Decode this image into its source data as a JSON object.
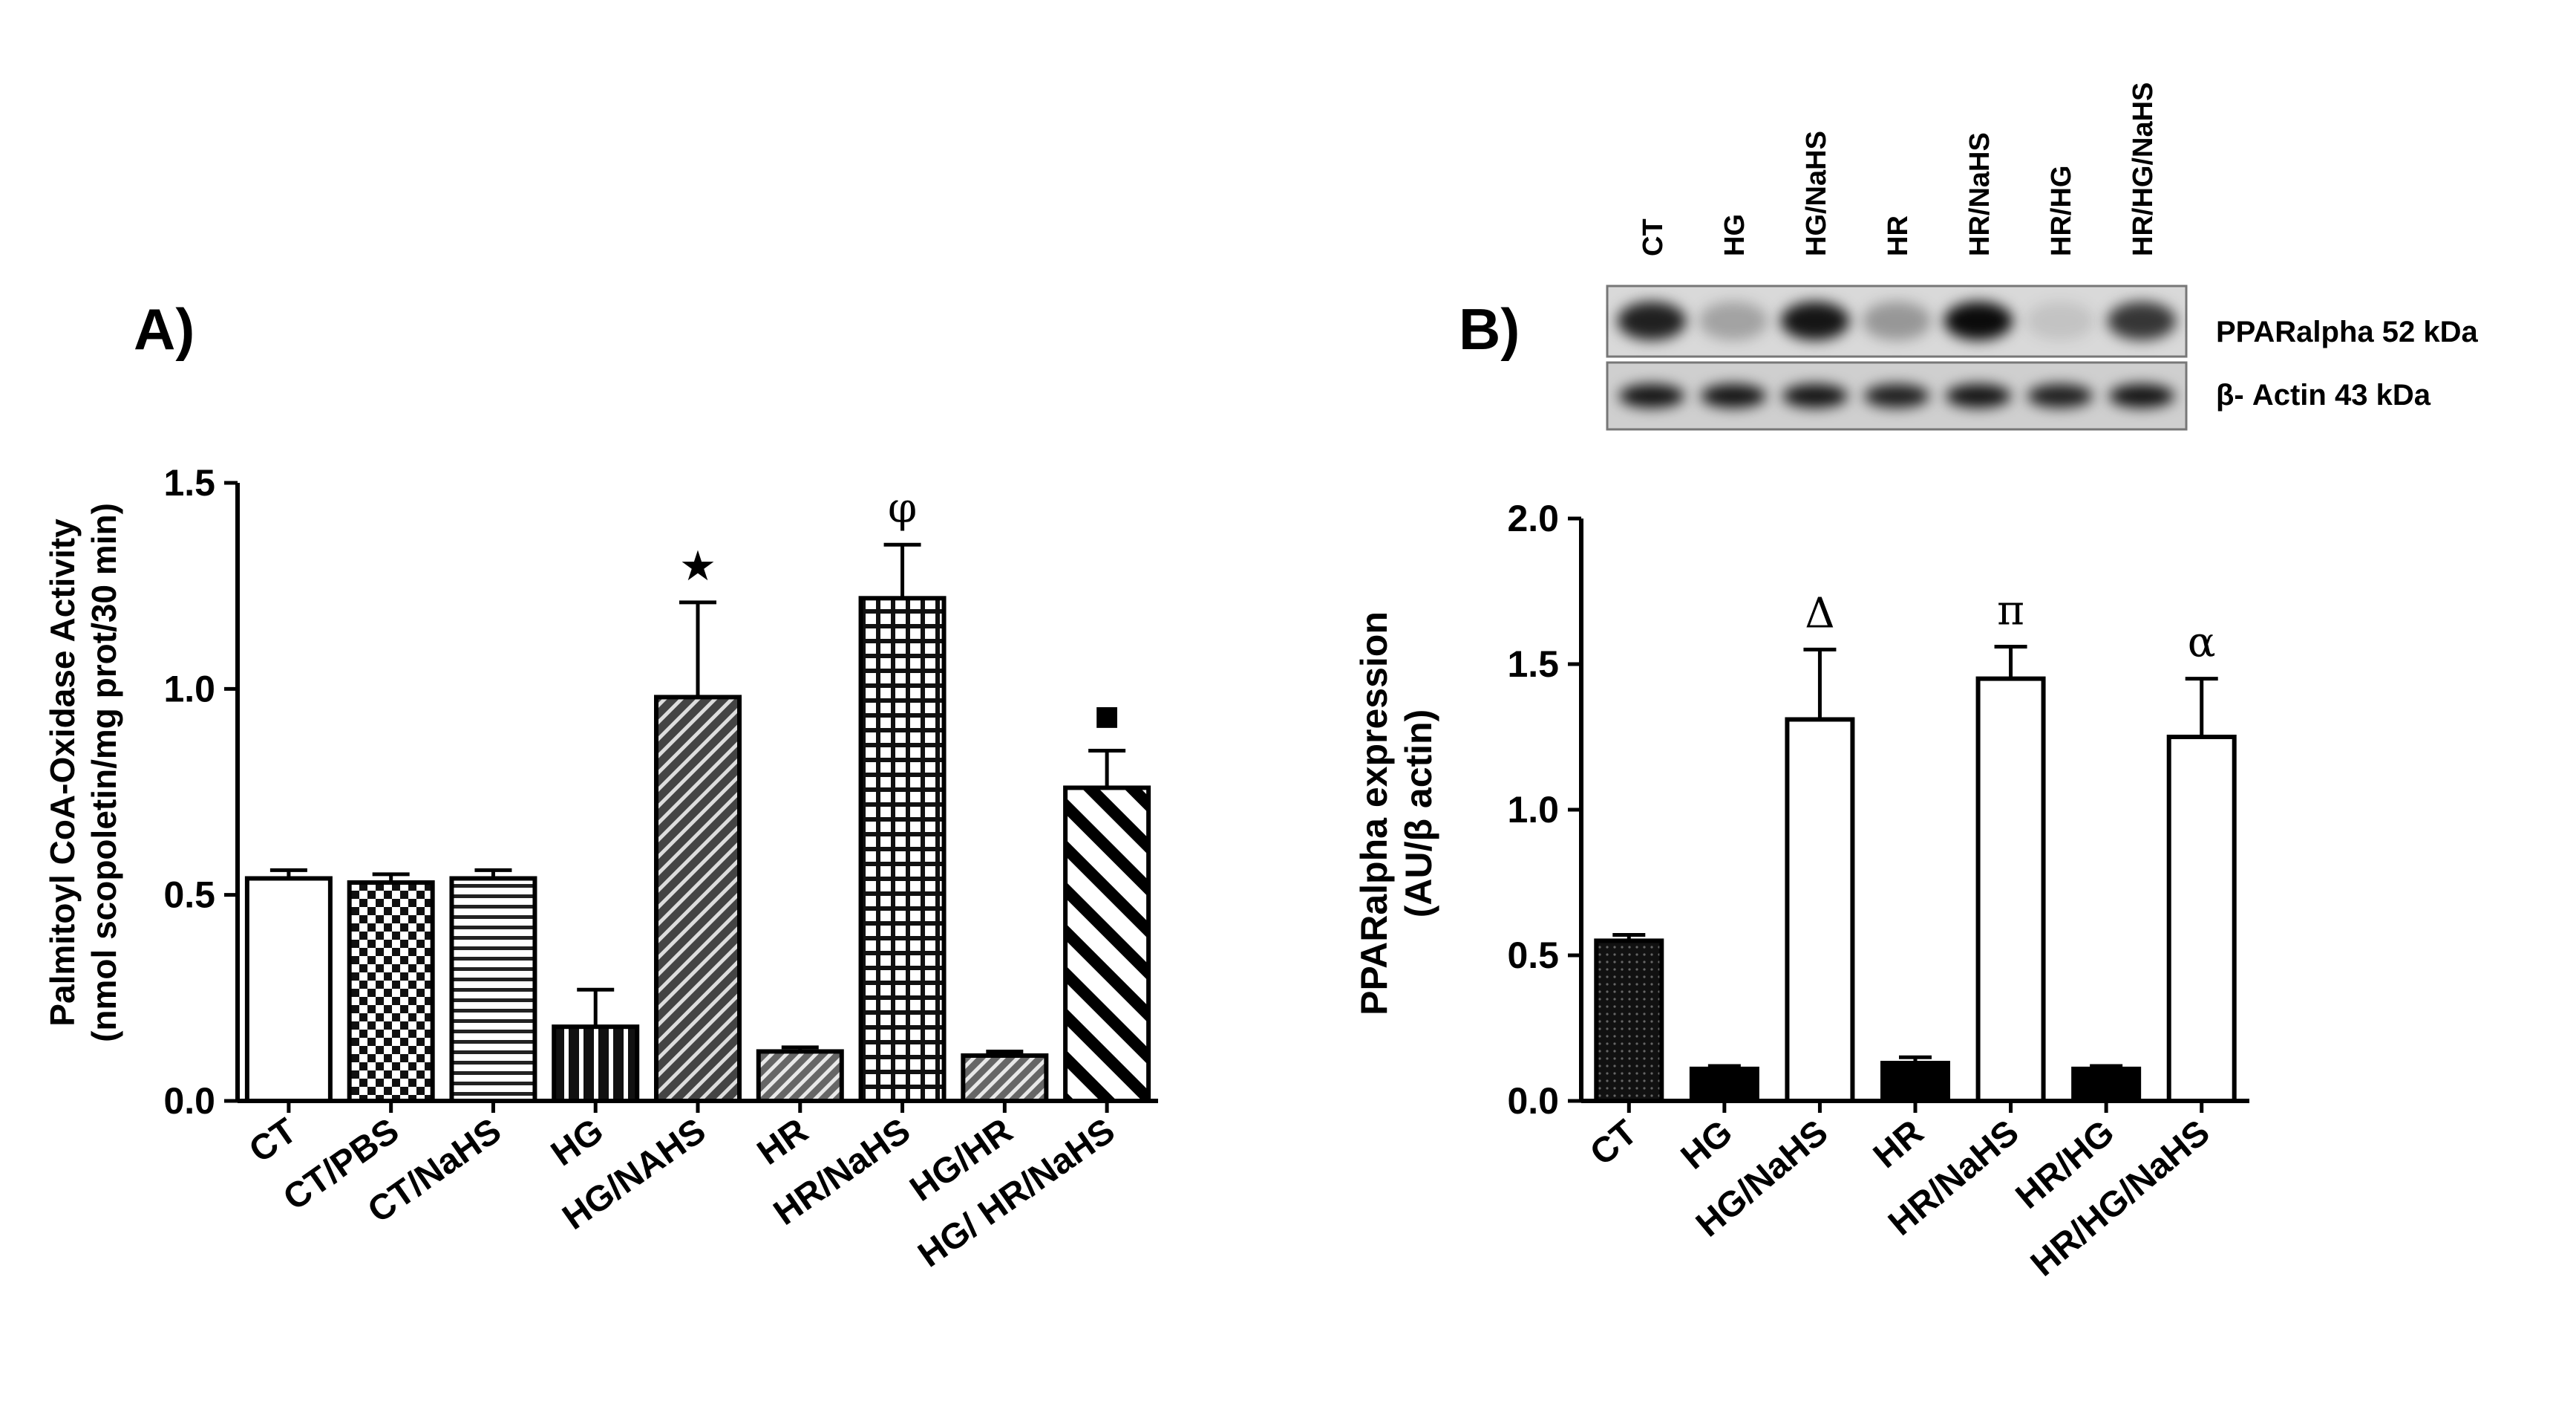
{
  "chart_data": [
    {
      "type": "bar",
      "panel_label": "A)",
      "ylabel_line1": "Palmitoyl CoA-Oxidase Activity",
      "ylabel_line2": "(nmol scopoletin/mg prot/30 min)",
      "ylim": [
        0,
        1.5
      ],
      "yticks": [
        "0.0",
        "0.5",
        "1.0",
        "1.5"
      ],
      "ytick_values": [
        0,
        0.5,
        1.0,
        1.5
      ],
      "categories": [
        "CT",
        "CT/PBS",
        "CT/NaHS",
        "HG",
        "HG/NAHS",
        "HR",
        "HR/NaHS",
        "HG/HR",
        "HG/ HR/NaHS"
      ],
      "values": [
        0.54,
        0.53,
        0.54,
        0.18,
        0.98,
        0.12,
        1.22,
        0.11,
        0.76
      ],
      "errors": [
        0.02,
        0.02,
        0.02,
        0.09,
        0.23,
        0.01,
        0.13,
        0.01,
        0.09
      ],
      "patterns": [
        "white",
        "checker",
        "hlines",
        "vlines",
        "diag-dense",
        "diag-light",
        "grid",
        "diag-light",
        "diag-wide"
      ],
      "significance": [
        "",
        "",
        "",
        "",
        "★",
        "",
        "φ",
        "",
        "▪"
      ],
      "grid": false
    },
    {
      "type": "bar",
      "panel_label": "B)",
      "ylabel_line1": "PPARalpha expression",
      "ylabel_line2": "(AU/β actin)",
      "ylim": [
        0,
        2.0
      ],
      "yticks": [
        "0.0",
        "0.5",
        "1.0",
        "1.5",
        "2.0"
      ],
      "ytick_values": [
        0,
        0.5,
        1.0,
        1.5,
        2.0
      ],
      "categories": [
        "CT",
        "HG",
        "HG/NaHS",
        "HR",
        "HR/NaHS",
        "HR/HG",
        "HR/HG/NaHS"
      ],
      "values": [
        0.55,
        0.11,
        1.31,
        0.13,
        1.45,
        0.11,
        1.25
      ],
      "errors": [
        0.02,
        0.01,
        0.24,
        0.02,
        0.11,
        0.01,
        0.2
      ],
      "patterns": [
        "dots",
        "black",
        "white",
        "black",
        "white",
        "black",
        "white"
      ],
      "significance": [
        "",
        "",
        "Δ",
        "",
        "π",
        "",
        "α"
      ],
      "grid": false
    }
  ],
  "blot": {
    "lanes": [
      "CT",
      "HG",
      "HG/NaHS",
      "HR",
      "HR/NaHS",
      "HR/HG",
      "HR/HG/NaHS"
    ],
    "band_labels": [
      "PPARalpha 52 kDa",
      "β- Actin 43 kDa"
    ],
    "ppar_intensity": [
      0.85,
      0.25,
      0.9,
      0.3,
      0.95,
      0.1,
      0.75
    ],
    "actin_intensity": [
      0.9,
      0.9,
      0.9,
      0.85,
      0.9,
      0.85,
      0.9
    ]
  }
}
